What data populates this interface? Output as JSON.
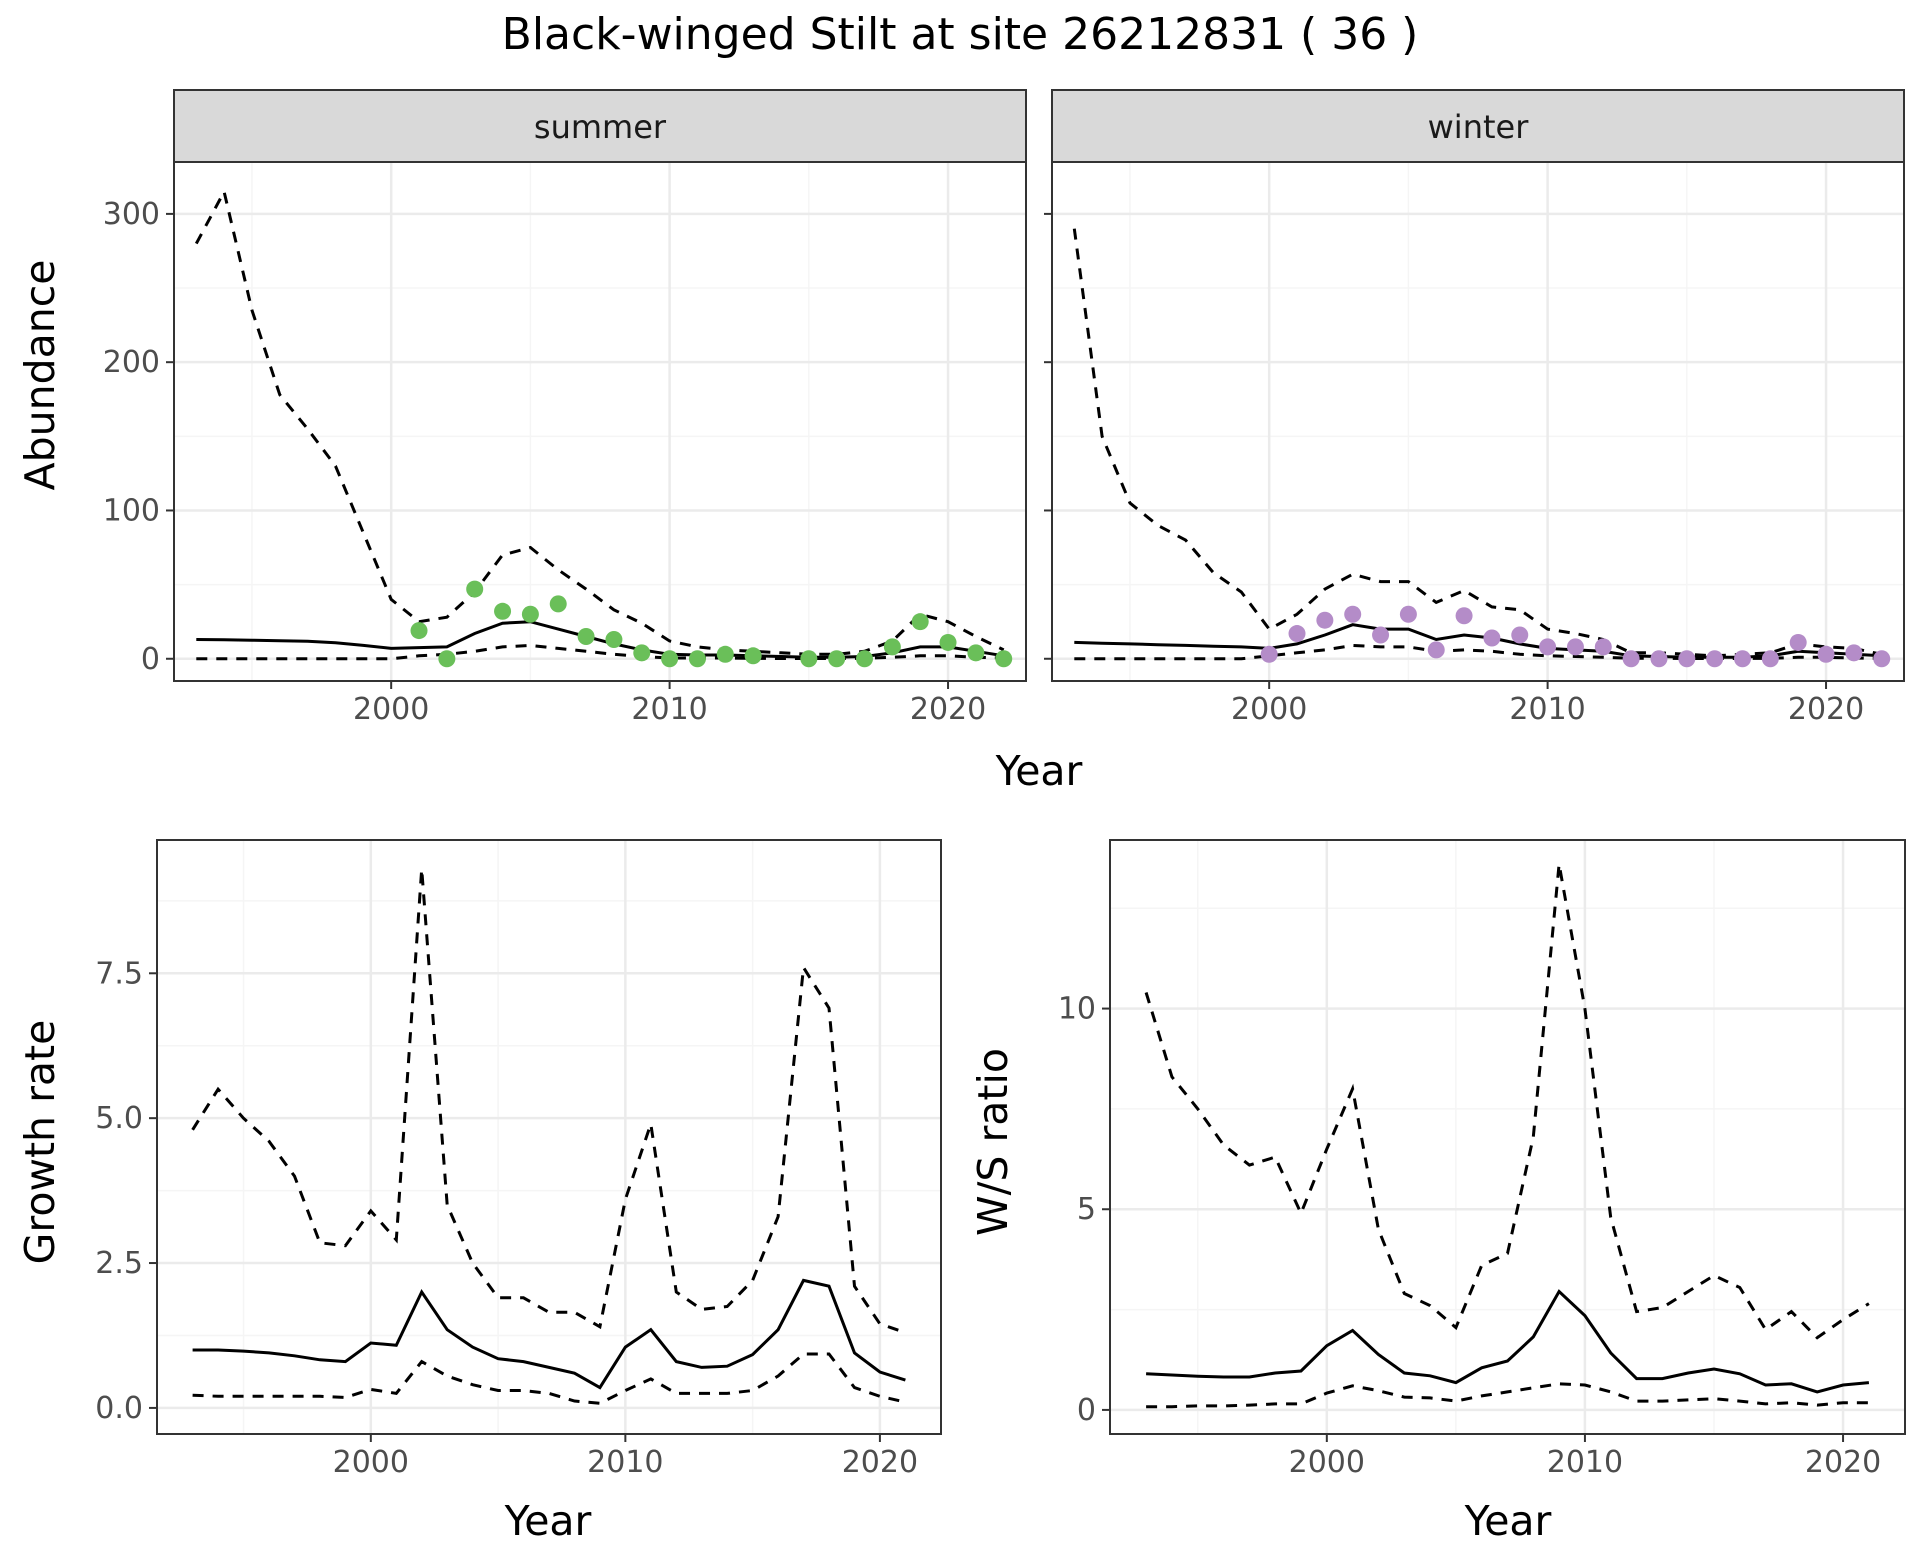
{
  "title": "Black-winged Stilt at site 26212831 ( 36 )",
  "colors": {
    "summer_points": "#6abf59",
    "winter_points": "#b48cc8",
    "lines": "#000000",
    "strip_fill": "#d9d9d9",
    "grid_major": "#ebebeb",
    "grid_minor": "#f5f5f5"
  },
  "chart_data": [
    {
      "type": "line",
      "facet": "summer",
      "xlabel": "Year",
      "ylabel": "Abundance",
      "xlim": [
        1992.2,
        2022.8
      ],
      "ylim": [
        -15,
        335
      ],
      "x_ticks": [
        2000,
        2010,
        2020
      ],
      "y_ticks": [
        0,
        100,
        200,
        300
      ],
      "x_tick_labels": [
        "2000",
        "2010",
        "2020"
      ],
      "y_tick_labels": [
        "0",
        "100",
        "200",
        "300"
      ],
      "grid": true,
      "estimate": {
        "x": [
          1993,
          1994,
          1995,
          1996,
          1997,
          1998,
          1999,
          2000,
          2001,
          2002,
          2003,
          2004,
          2005,
          2006,
          2007,
          2008,
          2009,
          2010,
          2011,
          2012,
          2013,
          2014,
          2015,
          2016,
          2017,
          2018,
          2019,
          2020,
          2021,
          2022
        ],
        "y": [
          13,
          12.8,
          12.5,
          12.2,
          11.8,
          10.8,
          9,
          7,
          7.5,
          8,
          17,
          24,
          25,
          20,
          15,
          10,
          6,
          3,
          2.5,
          2.5,
          2,
          1.5,
          1,
          1,
          1.5,
          4,
          8,
          8,
          5,
          2
        ]
      },
      "upper": {
        "x": [
          1993,
          1994,
          1995,
          1996,
          1997,
          1998,
          1999,
          2000,
          2001,
          2002,
          2003,
          2004,
          2005,
          2006,
          2007,
          2008,
          2009,
          2010,
          2011,
          2012,
          2013,
          2014,
          2015,
          2016,
          2017,
          2018,
          2019,
          2020,
          2021,
          2022
        ],
        "y": [
          280,
          315,
          235,
          178,
          155,
          130,
          85,
          40,
          25,
          28,
          45,
          70,
          75,
          60,
          47,
          33,
          24,
          12,
          8,
          6,
          5,
          4,
          3,
          3,
          5,
          12,
          30,
          25,
          15,
          6
        ]
      },
      "lower": {
        "x": [
          1993,
          1994,
          1995,
          1996,
          1997,
          1998,
          1999,
          2000,
          2001,
          2002,
          2003,
          2004,
          2005,
          2006,
          2007,
          2008,
          2009,
          2010,
          2011,
          2012,
          2013,
          2014,
          2015,
          2016,
          2017,
          2018,
          2019,
          2020,
          2021,
          2022
        ],
        "y": [
          0,
          0,
          0,
          0,
          0,
          0,
          0,
          0,
          2,
          3,
          5,
          8,
          9,
          7,
          5,
          3,
          1.5,
          0.5,
          0.5,
          0.5,
          0.3,
          0.2,
          0.2,
          0.2,
          0.3,
          1,
          2,
          2,
          1,
          0.5
        ]
      },
      "observed": {
        "x": [
          2001,
          2002,
          2003,
          2004,
          2005,
          2006,
          2007,
          2008,
          2009,
          2010,
          2011,
          2012,
          2013,
          2015,
          2016,
          2017,
          2018,
          2019,
          2020,
          2021,
          2022
        ],
        "y": [
          19,
          0,
          47,
          32,
          30,
          37,
          15,
          13,
          4,
          0,
          0,
          3,
          2,
          0,
          0,
          0,
          8,
          25,
          11,
          4,
          0
        ]
      }
    },
    {
      "type": "line",
      "facet": "winter",
      "xlabel": "Year",
      "ylabel": "Abundance",
      "xlim": [
        1992.2,
        2022.8
      ],
      "ylim": [
        -15,
        335
      ],
      "x_ticks": [
        2000,
        2010,
        2020
      ],
      "y_ticks": [
        0,
        100,
        200,
        300
      ],
      "x_tick_labels": [
        "2000",
        "2010",
        "2020"
      ],
      "grid": true,
      "estimate": {
        "x": [
          1993,
          1994,
          1995,
          1996,
          1997,
          1998,
          1999,
          2000,
          2001,
          2002,
          2003,
          2004,
          2005,
          2006,
          2007,
          2008,
          2009,
          2010,
          2011,
          2012,
          2013,
          2014,
          2015,
          2016,
          2017,
          2018,
          2019,
          2020,
          2021,
          2022
        ],
        "y": [
          11,
          10.5,
          10,
          9.5,
          9,
          8.5,
          8,
          7,
          10,
          16,
          23,
          20,
          20,
          13,
          16,
          14,
          10,
          7,
          6,
          5,
          2,
          1.5,
          1,
          1,
          1,
          2,
          5,
          4,
          3,
          2
        ]
      },
      "upper": {
        "x": [
          1993,
          1994,
          1995,
          1996,
          1997,
          1998,
          1999,
          2000,
          2001,
          2002,
          2003,
          2004,
          2005,
          2006,
          2007,
          2008,
          2009,
          2010,
          2011,
          2012,
          2013,
          2014,
          2015,
          2016,
          2017,
          2018,
          2019,
          2020,
          2021,
          2022
        ],
        "y": [
          290,
          150,
          105,
          90,
          80,
          58,
          45,
          20,
          30,
          47,
          57,
          52,
          52,
          38,
          46,
          35,
          33,
          20,
          17,
          13,
          4,
          4,
          3,
          2,
          3,
          4,
          10,
          8,
          7,
          3
        ]
      },
      "lower": {
        "x": [
          1993,
          1994,
          1995,
          1996,
          1997,
          1998,
          1999,
          2000,
          2001,
          2002,
          2003,
          2004,
          2005,
          2006,
          2007,
          2008,
          2009,
          2010,
          2011,
          2012,
          2013,
          2014,
          2015,
          2016,
          2017,
          2018,
          2019,
          2020,
          2021,
          2022
        ],
        "y": [
          0,
          0,
          0,
          0,
          0,
          0,
          0,
          2,
          4,
          6,
          9,
          8,
          8,
          5,
          6,
          5,
          3,
          2,
          1.5,
          1,
          0.3,
          0.3,
          0.2,
          0.2,
          0.2,
          0.3,
          1,
          1,
          0.5,
          0.3
        ]
      },
      "observed": {
        "x": [
          2000,
          2001,
          2002,
          2003,
          2004,
          2005,
          2006,
          2007,
          2008,
          2009,
          2010,
          2011,
          2012,
          2013,
          2014,
          2015,
          2016,
          2017,
          2018,
          2019,
          2020,
          2021,
          2022
        ],
        "y": [
          3,
          17,
          26,
          30,
          16,
          30,
          6,
          29,
          14,
          16,
          8,
          8,
          8,
          0,
          0,
          0,
          0,
          0,
          0,
          11,
          3,
          4,
          0
        ]
      }
    },
    {
      "type": "line",
      "facet": "growth",
      "xlabel": "Year",
      "ylabel": "Growth rate",
      "xlim": [
        1991.6,
        2022.4
      ],
      "ylim": [
        -0.45,
        9.8
      ],
      "x_ticks": [
        2000,
        2010,
        2020
      ],
      "y_ticks": [
        0,
        2.5,
        5,
        7.5
      ],
      "x_tick_labels": [
        "2000",
        "2010",
        "2020"
      ],
      "y_tick_labels": [
        "0.0",
        "2.5",
        "5.0",
        "7.5"
      ],
      "grid": true,
      "estimate": {
        "x": [
          1993,
          1994,
          1995,
          1996,
          1997,
          1998,
          1999,
          2000,
          2001,
          2002,
          2003,
          2004,
          2005,
          2006,
          2007,
          2008,
          2009,
          2010,
          2011,
          2012,
          2013,
          2014,
          2015,
          2016,
          2017,
          2018,
          2019,
          2020,
          2021
        ],
        "y": [
          1,
          1,
          0.98,
          0.95,
          0.9,
          0.83,
          0.8,
          1.12,
          1.08,
          2,
          1.35,
          1.05,
          0.85,
          0.8,
          0.7,
          0.6,
          0.35,
          1.05,
          1.35,
          0.8,
          0.7,
          0.72,
          0.92,
          1.35,
          2.2,
          2.1,
          0.95,
          0.62,
          0.48
        ]
      },
      "upper": {
        "x": [
          1993,
          1994,
          1995,
          1996,
          1997,
          1998,
          1999,
          2000,
          2001,
          2002,
          2003,
          2004,
          2005,
          2006,
          2007,
          2008,
          2009,
          2010,
          2011,
          2012,
          2013,
          2014,
          2015,
          2016,
          2017,
          2018,
          2019,
          2020,
          2021
        ],
        "y": [
          4.8,
          5.5,
          5,
          4.6,
          4,
          2.85,
          2.8,
          3.4,
          2.9,
          9.3,
          3.5,
          2.5,
          1.9,
          1.9,
          1.65,
          1.65,
          1.4,
          3.6,
          4.9,
          2,
          1.7,
          1.75,
          2.2,
          3.3,
          7.6,
          6.9,
          2.1,
          1.45,
          1.3
        ]
      },
      "lower": {
        "x": [
          1993,
          1994,
          1995,
          1996,
          1997,
          1998,
          1999,
          2000,
          2001,
          2002,
          2003,
          2004,
          2005,
          2006,
          2007,
          2008,
          2009,
          2010,
          2011,
          2012,
          2013,
          2014,
          2015,
          2016,
          2017,
          2018,
          2019,
          2020,
          2021
        ],
        "y": [
          0.22,
          0.2,
          0.2,
          0.2,
          0.2,
          0.2,
          0.18,
          0.32,
          0.25,
          0.8,
          0.55,
          0.4,
          0.3,
          0.3,
          0.25,
          0.12,
          0.08,
          0.3,
          0.5,
          0.25,
          0.25,
          0.25,
          0.3,
          0.55,
          0.93,
          0.93,
          0.35,
          0.2,
          0.1
        ]
      }
    },
    {
      "type": "line",
      "facet": "ratio",
      "xlabel": "Year",
      "ylabel": "W/S ratio",
      "xlim": [
        1991.6,
        2022.4
      ],
      "ylim": [
        -0.6,
        14.2
      ],
      "x_ticks": [
        2000,
        2010,
        2020
      ],
      "y_ticks": [
        0,
        5,
        10
      ],
      "x_tick_labels": [
        "2000",
        "2010",
        "2020"
      ],
      "y_tick_labels": [
        "0",
        "5",
        "10"
      ],
      "grid": true,
      "estimate": {
        "x": [
          1993,
          1994,
          1995,
          1996,
          1997,
          1998,
          1999,
          2000,
          2001,
          2002,
          2003,
          2004,
          2005,
          2006,
          2007,
          2008,
          2009,
          2010,
          2011,
          2012,
          2013,
          2014,
          2015,
          2016,
          2017,
          2018,
          2019,
          2020,
          2021
        ],
        "y": [
          0.9,
          0.87,
          0.84,
          0.82,
          0.82,
          0.92,
          0.97,
          1.6,
          1.98,
          1.38,
          0.92,
          0.85,
          0.68,
          1.05,
          1.22,
          1.82,
          2.95,
          2.35,
          1.42,
          0.78,
          0.78,
          0.92,
          1.02,
          0.9,
          0.62,
          0.65,
          0.45,
          0.62,
          0.68
        ]
      },
      "upper": {
        "x": [
          1993,
          1994,
          1995,
          1996,
          1997,
          1998,
          1999,
          2000,
          2001,
          2002,
          2003,
          2004,
          2005,
          2006,
          2007,
          2008,
          2009,
          2010,
          2011,
          2012,
          2013,
          2014,
          2015,
          2016,
          2017,
          2018,
          2019,
          2020,
          2021
        ],
        "y": [
          10.4,
          8.3,
          7.5,
          6.6,
          6.1,
          6.3,
          4.9,
          6.5,
          8,
          4.5,
          2.9,
          2.6,
          2.05,
          3.6,
          3.9,
          6.8,
          13.6,
          10,
          4.8,
          2.45,
          2.55,
          2.95,
          3.35,
          3.05,
          2,
          2.45,
          1.8,
          2.25,
          2.65
        ]
      },
      "lower": {
        "x": [
          1993,
          1994,
          1995,
          1996,
          1997,
          1998,
          1999,
          2000,
          2001,
          2002,
          2003,
          2004,
          2005,
          2006,
          2007,
          2008,
          2009,
          2010,
          2011,
          2012,
          2013,
          2014,
          2015,
          2016,
          2017,
          2018,
          2019,
          2020,
          2021
        ],
        "y": [
          0.08,
          0.08,
          0.1,
          0.1,
          0.12,
          0.15,
          0.15,
          0.42,
          0.6,
          0.48,
          0.32,
          0.3,
          0.22,
          0.35,
          0.45,
          0.55,
          0.65,
          0.62,
          0.45,
          0.22,
          0.22,
          0.25,
          0.28,
          0.22,
          0.15,
          0.18,
          0.12,
          0.18,
          0.18
        ]
      }
    }
  ],
  "facets": {
    "summer": {
      "strip": "summer"
    },
    "winter": {
      "strip": "winter"
    }
  },
  "axes": {
    "top_ylabel": "Abundance",
    "top_xlabel": "Year",
    "growth_ylabel": "Growth rate",
    "growth_xlabel": "Year",
    "ratio_ylabel": "W/S ratio",
    "ratio_xlabel": "Year"
  }
}
